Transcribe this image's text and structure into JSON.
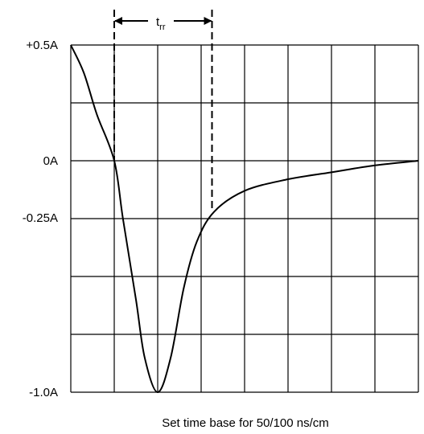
{
  "figure": {
    "y_labels": [
      "+0.5A",
      "0A",
      "-0.25A",
      "-1.0A"
    ],
    "trr_label": {
      "base": "t",
      "subscript": "rr"
    },
    "caption": "Set time base for 50/100 ns/cm"
  },
  "chart_data": {
    "type": "line",
    "title": "",
    "xlabel": "Set time base for 50/100 ns/cm",
    "ylabel": "",
    "grid": true,
    "grid_divisions": {
      "x": 8,
      "y": 6
    },
    "x_units": "cm (graticule divisions)",
    "xlim": [
      0,
      8
    ],
    "y_units": "A",
    "ylim": [
      -1.0,
      0.5
    ],
    "y_ticks": [
      {
        "label": "+0.5A",
        "value": 0.5
      },
      {
        "label": "0A",
        "value": 0.0
      },
      {
        "label": "-0.25A",
        "value": -0.25
      },
      {
        "label": "-1.0A",
        "value": -1.0
      }
    ],
    "series": [
      {
        "points": [
          [
            0.0,
            0.5
          ],
          [
            0.3,
            0.38
          ],
          [
            0.6,
            0.2
          ],
          [
            1.0,
            0.0
          ],
          [
            1.2,
            -0.25
          ],
          [
            1.5,
            -0.6
          ],
          [
            1.7,
            -0.85
          ],
          [
            2.0,
            -1.0
          ],
          [
            2.3,
            -0.85
          ],
          [
            2.6,
            -0.55
          ],
          [
            2.9,
            -0.35
          ],
          [
            3.3,
            -0.22
          ],
          [
            4.0,
            -0.13
          ],
          [
            5.0,
            -0.08
          ],
          [
            6.0,
            -0.05
          ],
          [
            7.0,
            -0.02
          ],
          [
            8.0,
            0.0
          ]
        ]
      }
    ],
    "markers": [
      {
        "type": "vertical-dashed",
        "x": 1.0
      },
      {
        "type": "vertical-dashed",
        "x": 3.25
      }
    ],
    "annotations": [
      {
        "text": "trr",
        "type": "double-arrow-span",
        "x_from": 1.0,
        "x_to": 3.25
      }
    ]
  }
}
